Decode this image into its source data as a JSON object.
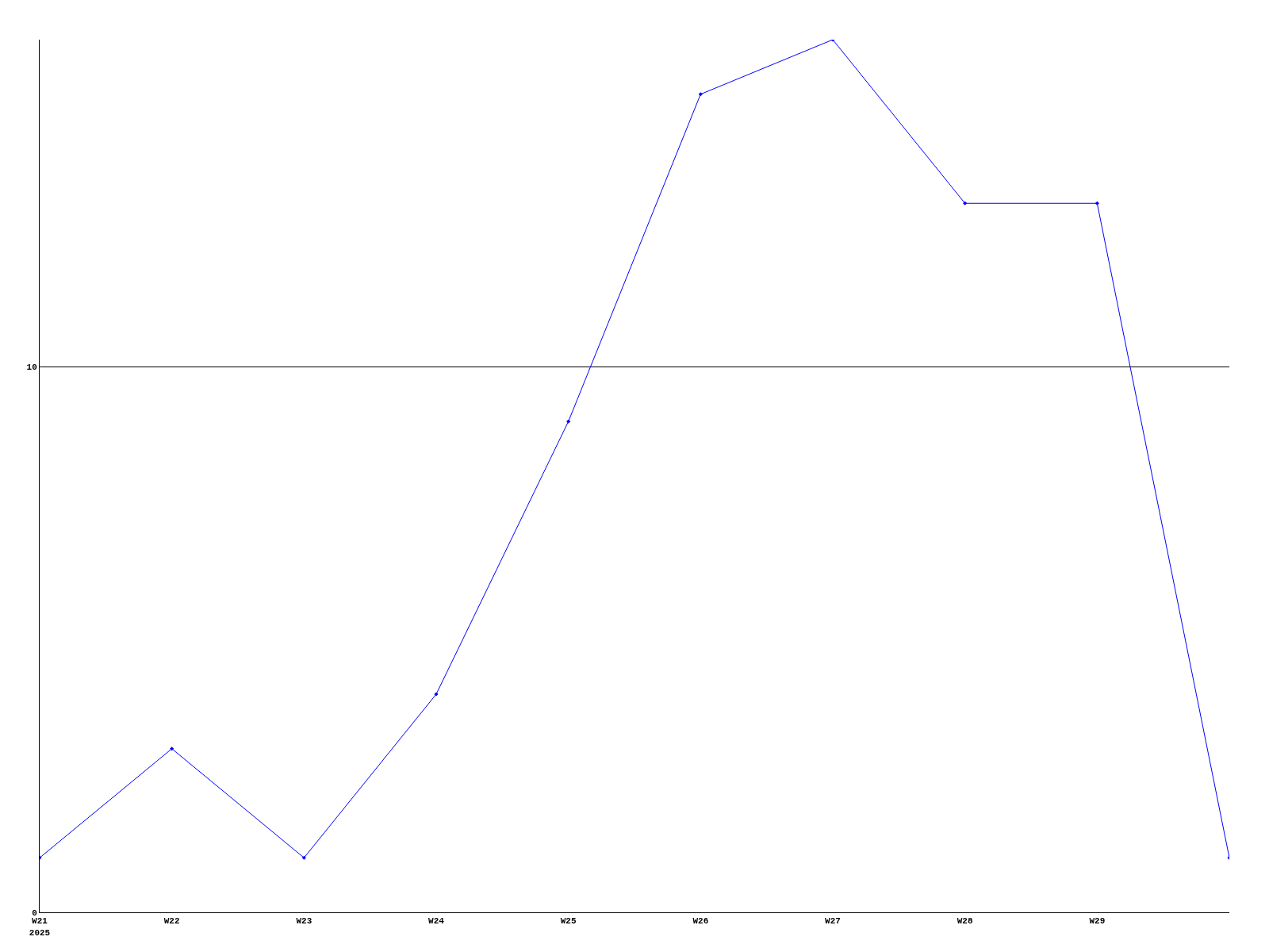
{
  "chart_data": {
    "type": "line",
    "categories": [
      "W21\n2025",
      "W22",
      "W23",
      "W24",
      "W25",
      "W26",
      "W27",
      "W28",
      "W29",
      null
    ],
    "series": [
      {
        "color": "#0000ff",
        "values": [
          1,
          3,
          1,
          4,
          9,
          15,
          16,
          13,
          13,
          1
        ]
      }
    ],
    "ylim": [
      0,
      16
    ],
    "yticks": [
      0,
      10
    ],
    "grid": "y",
    "marker": "diamond",
    "line_style": "solid"
  }
}
